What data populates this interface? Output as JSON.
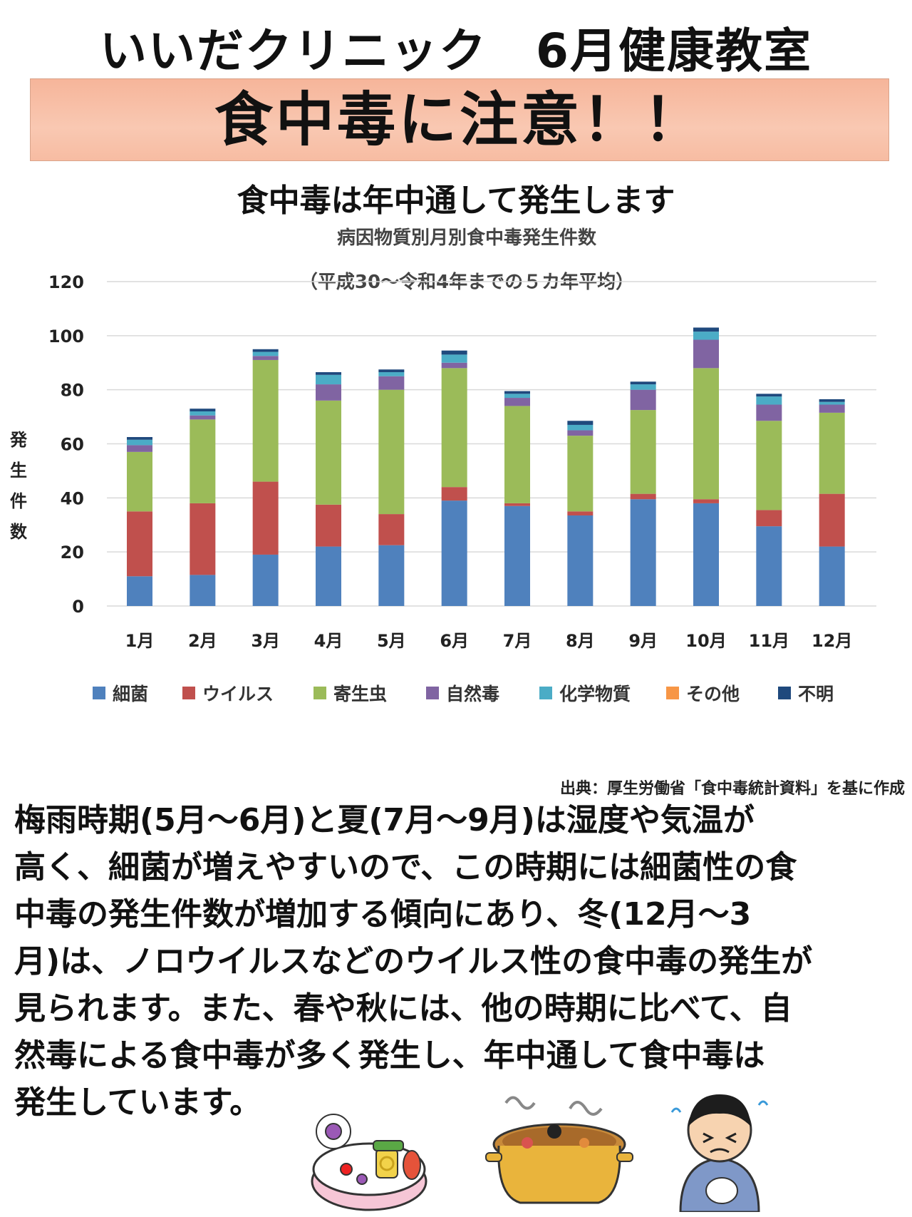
{
  "header": {
    "title": "いいだクリニック　6月健康教室",
    "banner": "食中毒に注意！！",
    "subtitle": "食中毒は年中通して発生します"
  },
  "chart_data": {
    "type": "bar",
    "stacked": true,
    "title": "病因物質別月別食中毒発生件数",
    "subtitle": "（平成30～令和4年までの５カ年平均）",
    "ylabel": "発生件数",
    "xlabel": "",
    "ylim": [
      0,
      120
    ],
    "yticks": [
      0,
      20,
      40,
      60,
      80,
      100,
      120
    ],
    "grid": true,
    "legend_position": "bottom",
    "categories": [
      "1月",
      "2月",
      "3月",
      "4月",
      "5月",
      "6月",
      "7月",
      "8月",
      "9月",
      "10月",
      "11月",
      "12月"
    ],
    "series": [
      {
        "name": "細菌",
        "color": "#4f81bd",
        "values": [
          11,
          11.5,
          19,
          22,
          22.5,
          39,
          37,
          33.5,
          39.5,
          38,
          29.5,
          22
        ]
      },
      {
        "name": "ウイルス",
        "color": "#c0504d",
        "values": [
          24,
          26.5,
          27,
          15.5,
          11.5,
          5,
          1,
          1.5,
          2,
          1.5,
          6,
          19.5
        ]
      },
      {
        "name": "寄生虫",
        "color": "#9bbb59",
        "values": [
          22,
          31,
          45,
          38.5,
          46,
          44,
          36,
          28,
          31,
          48.5,
          33,
          30
        ]
      },
      {
        "name": "自然毒",
        "color": "#8064a2",
        "values": [
          2.5,
          1.5,
          1.5,
          6,
          5,
          2,
          3,
          2,
          7.5,
          10.5,
          6,
          3
        ]
      },
      {
        "name": "化学物質",
        "color": "#4bacc6",
        "values": [
          2,
          1.5,
          1.5,
          3.5,
          1.5,
          3,
          1.5,
          2,
          2,
          3,
          3,
          1
        ]
      },
      {
        "name": "その他",
        "color": "#f79646",
        "values": [
          0,
          0,
          0,
          0,
          0,
          0,
          0,
          0,
          0,
          0,
          0,
          0
        ]
      },
      {
        "name": "不明",
        "color": "#1f497d",
        "values": [
          1,
          1,
          1,
          1,
          1,
          1.5,
          1,
          1.5,
          1,
          1.5,
          1,
          1
        ]
      }
    ]
  },
  "source": "出典：厚生労働省「食中毒統計資料」を基に作成",
  "body_lines": [
    "梅雨時期(5月～6月)と夏(7月～9月)は湿度や気温が",
    "高く、細菌が増えやすいので、この時期には細菌性の食",
    "中毒の発生件数が増加する傾向にあり、冬(12月～3",
    "月)は、ノロウイルスなどのウイルス性の食中毒の発生が",
    "見られます。また、春や秋には、他の時期に比べて、自",
    "然毒による食中毒が多く発生し、年中通して食中毒は",
    "発生しています。"
  ],
  "illustrations": [
    "bento-with-germs",
    "pot-with-germs",
    "sick-person"
  ]
}
